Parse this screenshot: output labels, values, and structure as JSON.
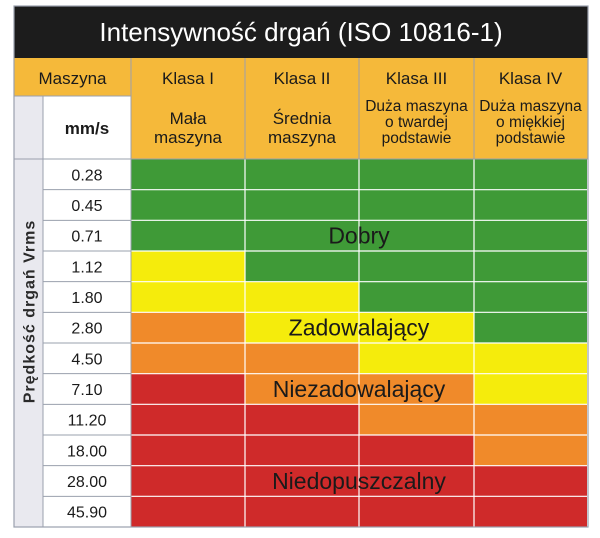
{
  "title": "Intensywność drgań (ISO 10816-1)",
  "header": {
    "machine_label": "Maszyna",
    "unit": "mm/s",
    "classes": [
      {
        "name": "Klasa I",
        "desc": [
          "Mała",
          "maszyna"
        ]
      },
      {
        "name": "Klasa II",
        "desc": [
          "Średnia",
          "maszyna"
        ]
      },
      {
        "name": "Klasa III",
        "desc": [
          "Duża maszyna",
          "o twardej",
          "podstawie"
        ]
      },
      {
        "name": "Klasa IV",
        "desc": [
          "Duża maszyna",
          "o miękkiej",
          "podstawie"
        ]
      }
    ]
  },
  "axis_label": "Prędkość drgań Vrms",
  "velocities": [
    "0.28",
    "0.45",
    "0.71",
    "1.12",
    "1.80",
    "2.80",
    "4.50",
    "7.10",
    "11.20",
    "18.00",
    "28.00",
    "45.90"
  ],
  "zones": [
    {
      "label": "Dobry",
      "color": "#3f9a37"
    },
    {
      "label": "Zadowalający",
      "color": "#f5ec0c"
    },
    {
      "label": "Niezadowalający",
      "color": "#f08a2a"
    },
    {
      "label": "Niedopuszczalny",
      "color": "#cf2a2a"
    }
  ],
  "grid": [
    [
      0,
      0,
      0,
      0
    ],
    [
      0,
      0,
      0,
      0
    ],
    [
      0,
      0,
      0,
      0
    ],
    [
      1,
      0,
      0,
      0
    ],
    [
      1,
      1,
      0,
      0
    ],
    [
      2,
      1,
      1,
      0
    ],
    [
      2,
      2,
      1,
      1
    ],
    [
      3,
      2,
      2,
      1
    ],
    [
      3,
      3,
      2,
      2
    ],
    [
      3,
      3,
      3,
      2
    ],
    [
      3,
      3,
      3,
      3
    ],
    [
      3,
      3,
      3,
      3
    ]
  ],
  "colors": {
    "title_bg": "#1c1c1c",
    "header_bg": "#f5b93a",
    "label_col_bg": "#e9e9ef",
    "cell_line": "#ffffff",
    "border": "#9aa0ad"
  }
}
